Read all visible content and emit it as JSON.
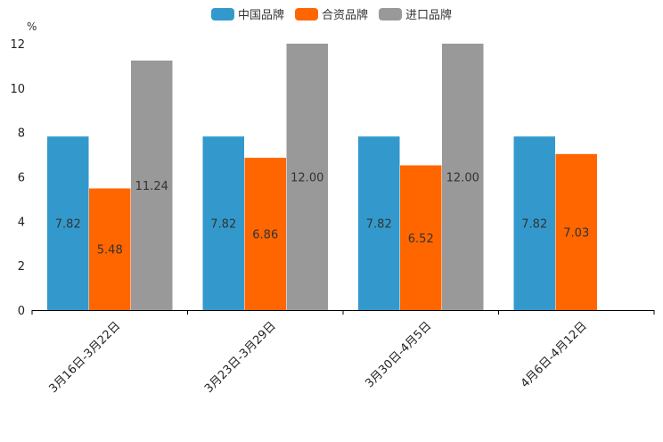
{
  "chart_data": {
    "type": "bar",
    "unit_label": "%",
    "categories": [
      "3月16日-3月22日",
      "3月23日-3月29日",
      "3月30日-4月5日",
      "4月6日-4月12日"
    ],
    "series": [
      {
        "name": "中国品牌",
        "color": "#3399cc",
        "values": [
          7.82,
          7.82,
          7.82,
          7.82
        ],
        "labels": [
          "7.82",
          "7.82",
          "7.82",
          "7.82"
        ]
      },
      {
        "name": "合资品牌",
        "color": "#ff6600",
        "values": [
          5.48,
          6.86,
          6.52,
          7.03
        ],
        "labels": [
          "5.48",
          "6.86",
          "6.52",
          "7.03"
        ]
      },
      {
        "name": "进口品牌",
        "color": "#999999",
        "values": [
          11.24,
          12.0,
          12.0,
          null
        ],
        "labels": [
          "11.24",
          "12.00",
          "12.00",
          null
        ]
      }
    ],
    "ylim": [
      0,
      12
    ],
    "yticks": [
      "0",
      "2",
      "4",
      "6",
      "8",
      "10",
      "12"
    ],
    "grid": false,
    "legend_position": "top-center"
  }
}
